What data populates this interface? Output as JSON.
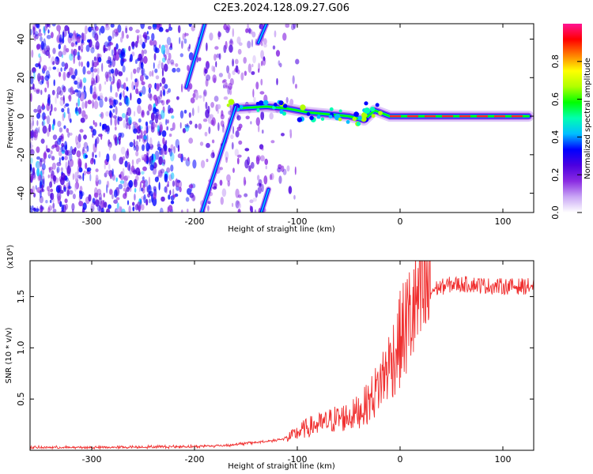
{
  "figure": {
    "title": "C2E3.2024.128.09.27.G06"
  },
  "chart_data": [
    {
      "type": "heatmap",
      "xlabel": "Height of straight line (km)",
      "ylabel": "Frequency (Hz)",
      "xlim": [
        -360,
        130
      ],
      "ylim": [
        -50,
        48
      ],
      "x_ticks": [
        -300,
        -200,
        -100,
        0,
        100
      ],
      "y_ticks": [
        -40,
        -20,
        0,
        20,
        40
      ],
      "colorbar": {
        "label": "Normalized spectral amplitude",
        "range": [
          0,
          1
        ],
        "ticks": [
          0.0,
          0.2,
          0.4,
          0.6,
          0.8
        ],
        "colors": [
          "#ffffff",
          "#c9a6f5",
          "#8a2be2",
          "#4b00e0",
          "#0000ff",
          "#00bfff",
          "#00ffb0",
          "#00ff00",
          "#b0ff00",
          "#ffff00",
          "#ff8000",
          "#ff0000",
          "#ff1493"
        ]
      },
      "ridge": [
        {
          "x": -160,
          "f": 4
        },
        {
          "x": -130,
          "f": 5
        },
        {
          "x": -110,
          "f": 4
        },
        {
          "x": -90,
          "f": 2
        },
        {
          "x": -70,
          "f": 1
        },
        {
          "x": -50,
          "f": 0
        },
        {
          "x": -35,
          "f": -2
        },
        {
          "x": -25,
          "f": 3
        },
        {
          "x": -10,
          "f": 0
        },
        {
          "x": 0,
          "f": 0
        },
        {
          "x": 50,
          "f": 0
        },
        {
          "x": 125,
          "f": 0
        }
      ],
      "streaks": [
        {
          "x_start": -193,
          "f_start": -50,
          "x_end": -160,
          "f_end": 5
        },
        {
          "x_start": -208,
          "f_start": 15,
          "x_end": -190,
          "f_end": 48
        },
        {
          "x_start": -135,
          "f_start": -50,
          "x_end": -128,
          "f_end": -38
        },
        {
          "x_start": -138,
          "f_start": 38,
          "x_end": -130,
          "f_end": 48
        }
      ]
    },
    {
      "type": "line",
      "xlabel": "Height of straight line (km)",
      "ylabel": "SNR (10 * v/v)",
      "y_multiplier": "(x10⁴)",
      "xlim": [
        -360,
        130
      ],
      "ylim": [
        0,
        1.85
      ],
      "x_ticks": [
        -300,
        -200,
        -100,
        0,
        100
      ],
      "y_ticks": [
        0.5,
        1.0,
        1.5
      ],
      "y_tick_labels": [
        "0.5",
        "1.0",
        "1.5"
      ],
      "series": [
        {
          "color": "#f03030",
          "x": [
            -360,
            -300,
            -250,
            -200,
            -170,
            -150,
            -130,
            -115,
            -105,
            -95,
            -85,
            -75,
            -65,
            -55,
            -45,
            -35,
            -25,
            -15,
            -5,
            5,
            15,
            25,
            35,
            50,
            70,
            90,
            110,
            130
          ],
          "y": [
            0.02,
            0.02,
            0.025,
            0.03,
            0.04,
            0.06,
            0.08,
            0.1,
            0.14,
            0.2,
            0.24,
            0.26,
            0.3,
            0.32,
            0.35,
            0.42,
            0.55,
            0.75,
            0.95,
            1.2,
            1.4,
            1.52,
            1.58,
            1.62,
            1.62,
            1.6,
            1.6,
            1.6
          ]
        }
      ]
    }
  ]
}
